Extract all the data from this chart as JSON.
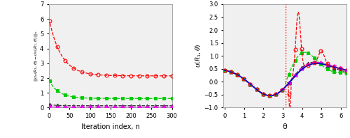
{
  "left": {
    "xlim": [
      0,
      300
    ],
    "ylim": [
      0,
      7
    ],
    "xlabel": "Iteration index, n",
    "xticks": [
      0,
      50,
      100,
      150,
      200,
      250,
      300
    ],
    "yticks": [
      0,
      1,
      2,
      3,
      4,
      5,
      6,
      7
    ],
    "bg_color": "#f0f0f0",
    "series": [
      {
        "color": "#ff0000",
        "marker": "o",
        "start": 6.0,
        "end": 2.15,
        "tau": 0.1,
        "mfc": "none",
        "ms": 3.5
      },
      {
        "color": "#00cc00",
        "marker": "s",
        "start": 1.85,
        "end": 0.62,
        "tau": 0.08,
        "mfc": "#00cc00",
        "ms": 3.5
      },
      {
        "color": "#333333",
        "marker": "^",
        "start": 0.2,
        "end": 0.13,
        "tau": 0.06,
        "mfc": "#333333",
        "ms": 3.5
      },
      {
        "color": "#ff00ff",
        "marker": "*",
        "start": 0.05,
        "end": 0.04,
        "tau": 0.06,
        "mfc": "#ff00ff",
        "ms": 4.5
      }
    ]
  },
  "right": {
    "xlim": [
      -0.05,
      6.28
    ],
    "ylim": [
      -1,
      3
    ],
    "xlabel": "θ",
    "ylabel": "u(R₁,θ)",
    "xticks": [
      0,
      1,
      2,
      3,
      4,
      5,
      6
    ],
    "yticks": [
      -1,
      -0.5,
      0,
      0.5,
      1,
      1.5,
      2,
      2.5,
      3
    ],
    "vline_x": 3.14159,
    "bg_color": "#f0f0f0"
  },
  "fig_width": 5.0,
  "fig_height": 1.98
}
